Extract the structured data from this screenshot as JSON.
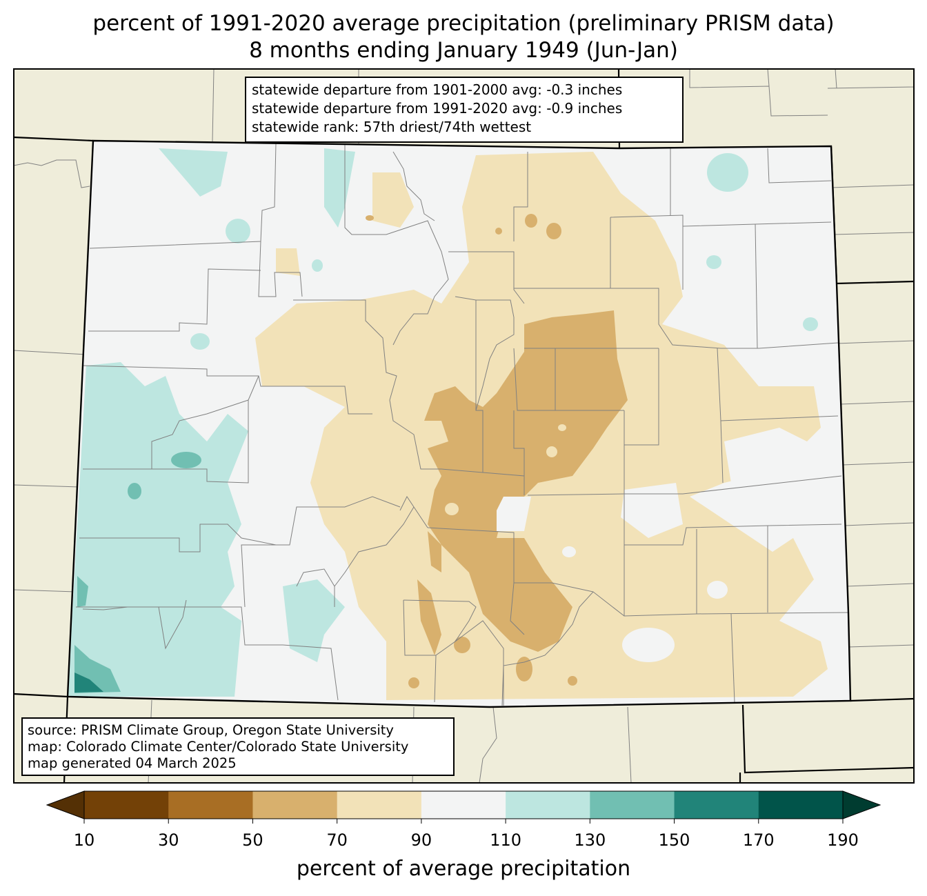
{
  "title": {
    "line1": "percent of 1991-2020 average precipitation (preliminary PRISM data)",
    "line2": "8 months ending January 1949 (Jun-Jan)"
  },
  "stats_box": {
    "line1": "statewide departure from 1901-2000 avg: -0.3 inches",
    "line2": "statewide departure from 1991-2020 avg: -0.9 inches",
    "line3": "statewide rank: 57th driest/74th wettest"
  },
  "source_box": {
    "line1": "source: PRISM Climate Group, Oregon State University",
    "line2": "map: Colorado Climate Center/Colorado State University",
    "line3": "map generated 04 March 2025"
  },
  "colorbar": {
    "label": "percent of average precipitation",
    "ticks": [
      "10",
      "30",
      "50",
      "70",
      "90",
      "110",
      "130",
      "150",
      "170",
      "190"
    ],
    "colors": [
      "#734107",
      "#a86e24",
      "#d8b06d",
      "#f2e2b8",
      "#f3f4f4",
      "#bde6e0",
      "#71bfb2",
      "#218479",
      "#01544a"
    ],
    "under_color": "#543005",
    "over_color": "#003c30"
  },
  "map": {
    "region": "Colorado",
    "background_color": "#efedda",
    "state_fill": "#f3f4f4"
  }
}
